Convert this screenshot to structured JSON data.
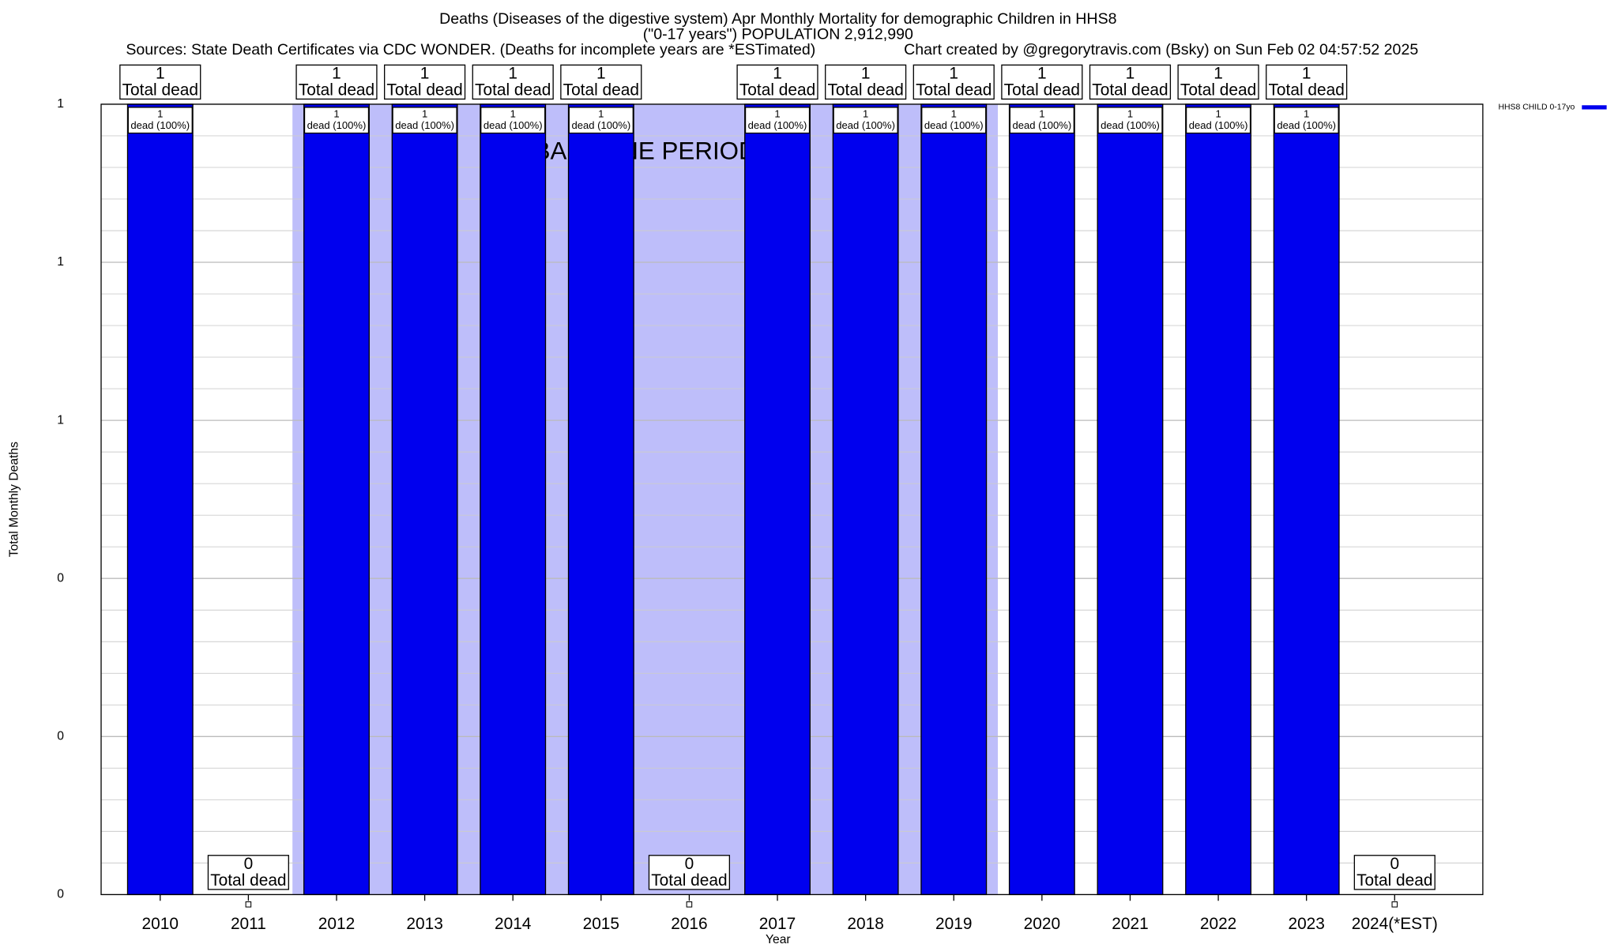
{
  "chart_data": {
    "type": "bar",
    "title": "Deaths (Diseases of the digestive system) Apr Monthly Mortality for demographic Children in HHS8",
    "subtitle": "(\"0-17 years\") POPULATION 2,912,990",
    "source": "Sources: State Death Certificates via CDC WONDER. (Deaths for incomplete years are *ESTimated)",
    "credit": "Chart created by @gregorytravis.com (Bsky) on Sun Feb 02 04:57:52 2025",
    "x_label": "Year",
    "y_label": "Total Monthly Deaths",
    "x": [
      2010,
      2011,
      2012,
      2013,
      2014,
      2015,
      2016,
      2017,
      2018,
      2019,
      2020,
      2021,
      2022,
      2023,
      2024
    ],
    "series": [
      {
        "name": "HHS8 CHILD 0-17yo",
        "color": "#0000ee",
        "values": [
          1,
          0,
          1,
          1,
          1,
          1,
          0,
          1,
          1,
          1,
          1,
          1,
          1,
          1,
          0
        ],
        "inner_labels": [
          "dead (100%)",
          null,
          "dead (100%)",
          "dead (100%)",
          "dead (100%)",
          "dead (100%)",
          null,
          "dead (100%)",
          "dead (100%)",
          "dead (100%)",
          "dead (100%)",
          "dead (100%)",
          "dead (100%)",
          "dead (100%)",
          null
        ]
      }
    ],
    "total_label": "Total dead",
    "baseline": {
      "label": "BASELINE PERIOD",
      "start": 2011.5,
      "end": 2019.5,
      "color": "#bebefa"
    },
    "xlim": [
      2009.33,
      2025.0
    ],
    "xticks": [
      2010,
      2011,
      2012,
      2013,
      2014,
      2015,
      2016,
      2017,
      2018,
      2019,
      2020,
      2021,
      2022,
      2023,
      {
        "value": 2024,
        "label": "2024(*EST)"
      }
    ],
    "ylim": [
      0,
      1
    ],
    "yticks": [
      0,
      {
        "value": 0.2,
        "label": "0"
      },
      {
        "value": 0.4,
        "label": "0"
      },
      {
        "value": 0.6,
        "label": "1"
      },
      {
        "value": 0.8,
        "label": "1"
      },
      1
    ],
    "minor_grid_divisions": 5,
    "grid": true,
    "legend": "top-right"
  }
}
